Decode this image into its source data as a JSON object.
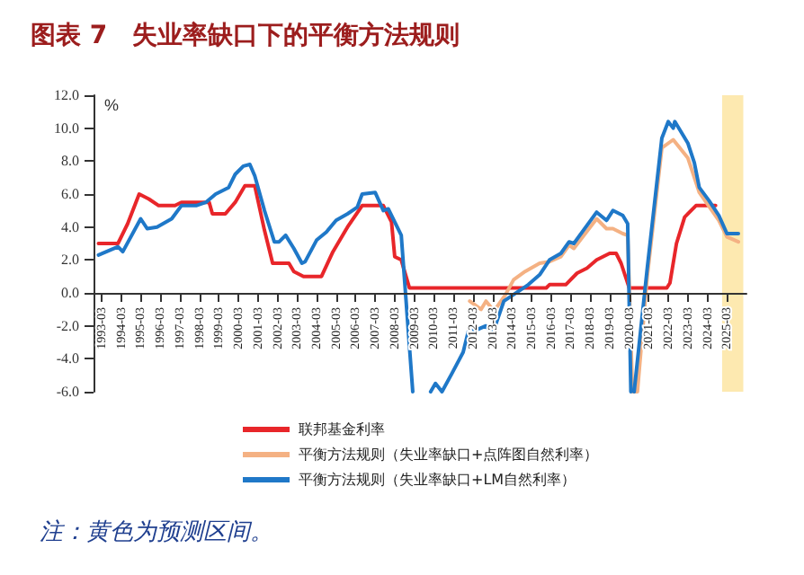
{
  "chart_data": {
    "type": "line",
    "title": "图表 7　失业率缺口下的平衡方法规则",
    "ylabel": "%",
    "legend": "bottom",
    "grid": false,
    "marker": "none",
    "line_style": "solid",
    "xlim": [
      "1992-10",
      "2026-03"
    ],
    "ylim": [
      -6,
      12
    ],
    "yticks": [
      {
        "value": -6,
        "label": "-6.0"
      },
      {
        "value": -4,
        "label": "-4.0"
      },
      {
        "value": -2,
        "label": "-2.0"
      },
      {
        "value": 0,
        "label": "0.0"
      },
      {
        "value": 2,
        "label": "2.0"
      },
      {
        "value": 4,
        "label": "4.0"
      },
      {
        "value": 6,
        "label": "6.0"
      },
      {
        "value": 8,
        "label": "8.0"
      },
      {
        "value": 10,
        "label": "10.0"
      },
      {
        "value": 12,
        "label": "12.0"
      }
    ],
    "xticks": [
      "1993-03",
      "1994-03",
      "1995-03",
      "1996-03",
      "1997-03",
      "1998-03",
      "1999-03",
      "2000-03",
      "2001-03",
      "2002-03",
      "2003-03",
      "2004-03",
      "2005-03",
      "2006-03",
      "2007-03",
      "2008-03",
      "2009-03",
      "2010-03",
      "2011-03",
      "2012-03",
      "2013-03",
      "2014-03",
      "2015-03",
      "2016-03",
      "2017-03",
      "2018-03",
      "2019-03",
      "2020-03",
      "2021-03",
      "2022-03",
      "2023-03",
      "2024-03",
      "2025-03"
    ],
    "bands": [
      {
        "axis": "x",
        "from": "2024-12",
        "to": "2026-01",
        "color": "#fde9b0"
      }
    ],
    "annotations": [
      "注：黄色为预测区间。"
    ],
    "series": [
      {
        "name": "联邦基金利率",
        "color": "#e8262a",
        "x": [
          "1993-01",
          "1994-01",
          "1994-07",
          "1995-02",
          "1995-08",
          "1996-02",
          "1996-12",
          "1997-04",
          "1998-09",
          "1998-11",
          "1999-07",
          "2000-01",
          "2000-07",
          "2001-01",
          "2001-07",
          "2001-12",
          "2002-10",
          "2003-01",
          "2003-07",
          "2004-06",
          "2005-01",
          "2005-10",
          "2006-07",
          "2007-08",
          "2008-01",
          "2008-03",
          "2008-07",
          "2008-12",
          "2015-12",
          "2016-02",
          "2016-12",
          "2017-07",
          "2018-01",
          "2018-07",
          "2019-03",
          "2019-07",
          "2019-10",
          "2020-03",
          "2022-02",
          "2022-04",
          "2022-08",
          "2023-01",
          "2023-08",
          "2024-08"
        ],
        "values": [
          3.0,
          3.0,
          4.2,
          6.0,
          5.7,
          5.3,
          5.3,
          5.5,
          5.5,
          4.8,
          4.8,
          5.5,
          6.5,
          6.5,
          3.8,
          1.8,
          1.8,
          1.3,
          1.0,
          1.0,
          2.5,
          4.0,
          5.3,
          5.3,
          4.3,
          2.2,
          2.0,
          0.3,
          0.3,
          0.5,
          0.5,
          1.2,
          1.5,
          2.0,
          2.4,
          2.4,
          1.8,
          0.3,
          0.3,
          0.6,
          3.0,
          4.6,
          5.3,
          5.3
        ]
      },
      {
        "name": "平衡方法规则（失业率缺口+点阵图自然利率）",
        "color": "#f4b183",
        "x": [
          "2012-01",
          "2012-08",
          "2012-11",
          "2013-04",
          "2013-11",
          "2014-04",
          "2014-11",
          "2015-08",
          "2016-02",
          "2016-09",
          "2017-02",
          "2017-05",
          "2018-07",
          "2019-01",
          "2019-05",
          "2019-11",
          "2020-02",
          "2020-05",
          "2020-08",
          "2021-02",
          "2021-11",
          "2022-06",
          "2023-03",
          "2023-10",
          "2024-10",
          "2025-03",
          "2025-10"
        ],
        "values": [
          -0.5,
          -1.0,
          -0.5,
          -1.1,
          -0.1,
          0.8,
          1.3,
          1.8,
          1.9,
          2.2,
          2.9,
          2.7,
          4.5,
          3.9,
          3.9,
          3.6,
          3.5,
          -6.0,
          -6.0,
          1.0,
          8.8,
          9.3,
          8.2,
          6.1,
          4.4,
          3.4,
          3.1
        ]
      },
      {
        "name": "平衡方法规则（失业率缺口+LM自然利率）",
        "color": "#1f78c8",
        "x": [
          "1993-01",
          "1994-01",
          "1994-04",
          "1995-03",
          "1995-07",
          "1996-01",
          "1996-10",
          "1997-04",
          "1998-01",
          "1998-07",
          "1999-01",
          "1999-09",
          "2000-01",
          "2000-06",
          "2000-10",
          "2001-01",
          "2001-07",
          "2002-01",
          "2002-04",
          "2002-08",
          "2003-01",
          "2003-06",
          "2003-08",
          "2004-03",
          "2004-09",
          "2005-03",
          "2005-10",
          "2006-04",
          "2006-07",
          "2007-03",
          "2007-08",
          "2007-11",
          "2008-07",
          "2009-02",
          "2009-03",
          "2010-01",
          "2010-04",
          "2010-08",
          "2011-02",
          "2011-09",
          "2012-01",
          "2012-04",
          "2012-11",
          "2013-03",
          "2013-10",
          "2014-04",
          "2015-01",
          "2015-08",
          "2016-02",
          "2016-09",
          "2017-02",
          "2017-05",
          "2018-07",
          "2019-01",
          "2019-05",
          "2019-11",
          "2020-02",
          "2020-04",
          "2020-05",
          "2020-06",
          "2021-02",
          "2021-11",
          "2022-03",
          "2022-06",
          "2022-07",
          "2023-03",
          "2023-07",
          "2023-10",
          "2024-04",
          "2024-10",
          "2025-03",
          "2025-10"
        ],
        "values": [
          2.3,
          2.8,
          2.5,
          4.5,
          3.9,
          4.0,
          4.5,
          5.3,
          5.3,
          5.5,
          6.0,
          6.4,
          7.2,
          7.7,
          7.8,
          7.1,
          5.0,
          3.1,
          3.1,
          3.5,
          2.7,
          1.8,
          1.9,
          3.2,
          3.7,
          4.4,
          4.8,
          5.2,
          6.0,
          6.1,
          5.0,
          5.1,
          3.5,
          -6.0,
          null,
          -6.0,
          -5.5,
          -6.0,
          -4.9,
          -3.6,
          -2.0,
          -2.3,
          -2.0,
          -2.5,
          -0.5,
          -0.1,
          0.5,
          1.1,
          2.0,
          2.4,
          3.1,
          3.0,
          4.9,
          4.4,
          5.0,
          4.7,
          4.2,
          -6.0,
          null,
          -6.0,
          1.5,
          9.4,
          10.4,
          10.0,
          10.4,
          9.1,
          7.9,
          6.4,
          5.6,
          4.7,
          3.6,
          3.6
        ]
      }
    ]
  }
}
